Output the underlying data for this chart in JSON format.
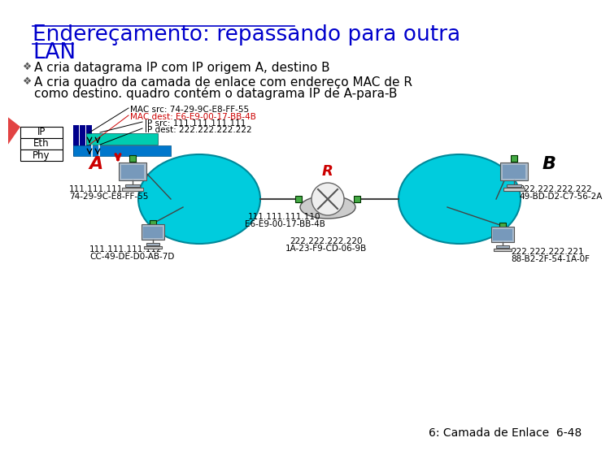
{
  "title_line1": "Endereçamento: repassando para outra",
  "title_line2": "LAN",
  "title_color": "#0000CC",
  "title_fontsize": 19,
  "bg_color": "#FFFFFF",
  "bullet1": "A cria datagrama IP com IP origem A, destino B",
  "bullet2a": "A cria quadro da camada de enlace com endereço MAC de R",
  "bullet2b": "como destino. quadro contém o datagrama IP de A-para-B",
  "bullet_fontsize": 11,
  "mac_src_text": "MAC src: 74-29-9C-E8-FF-55",
  "mac_dest_text": "MAC dest: E6-E9-00-17-BB-4B",
  "mac_dest_color": "#CC0000",
  "ip_src_text": "IP src: 111.111.111.111",
  "ip_dest_text": "IP dest: 222.222.222.222",
  "node_A_label": "A",
  "node_B_label": "B",
  "node_R_label": "R",
  "node_A_color": "#CC0000",
  "node_B_color": "#000000",
  "node_R_color": "#CC0000",
  "lan_color": "#00CCDD",
  "lan_edge_color": "#008899",
  "A_ip": "111.111.111.111",
  "A_mac": "74-29-9C-E8-FF-55",
  "A2_ip": "111.111.111.112",
  "A2_mac": "CC-49-DE-D0-AB-7D",
  "R_left_ip": "111.111.111.110",
  "R_left_mac": "E6-E9-00-17-BB-4B",
  "R_right_ip": "222.222.222.220",
  "R_right_mac": "1A-23-F9-CD-06-9B",
  "B_ip": "222.222.222.222",
  "B_mac": "49-BD-D2-C7-56-2A",
  "B2_ip": "222.222.222.221",
  "B2_mac": "88-B2-2F-54-1A-0F",
  "footer": "6: Camada de Enlace  6-48",
  "footer_fontsize": 10,
  "small_fontsize": 7.5,
  "annot_fontsize": 7.5
}
